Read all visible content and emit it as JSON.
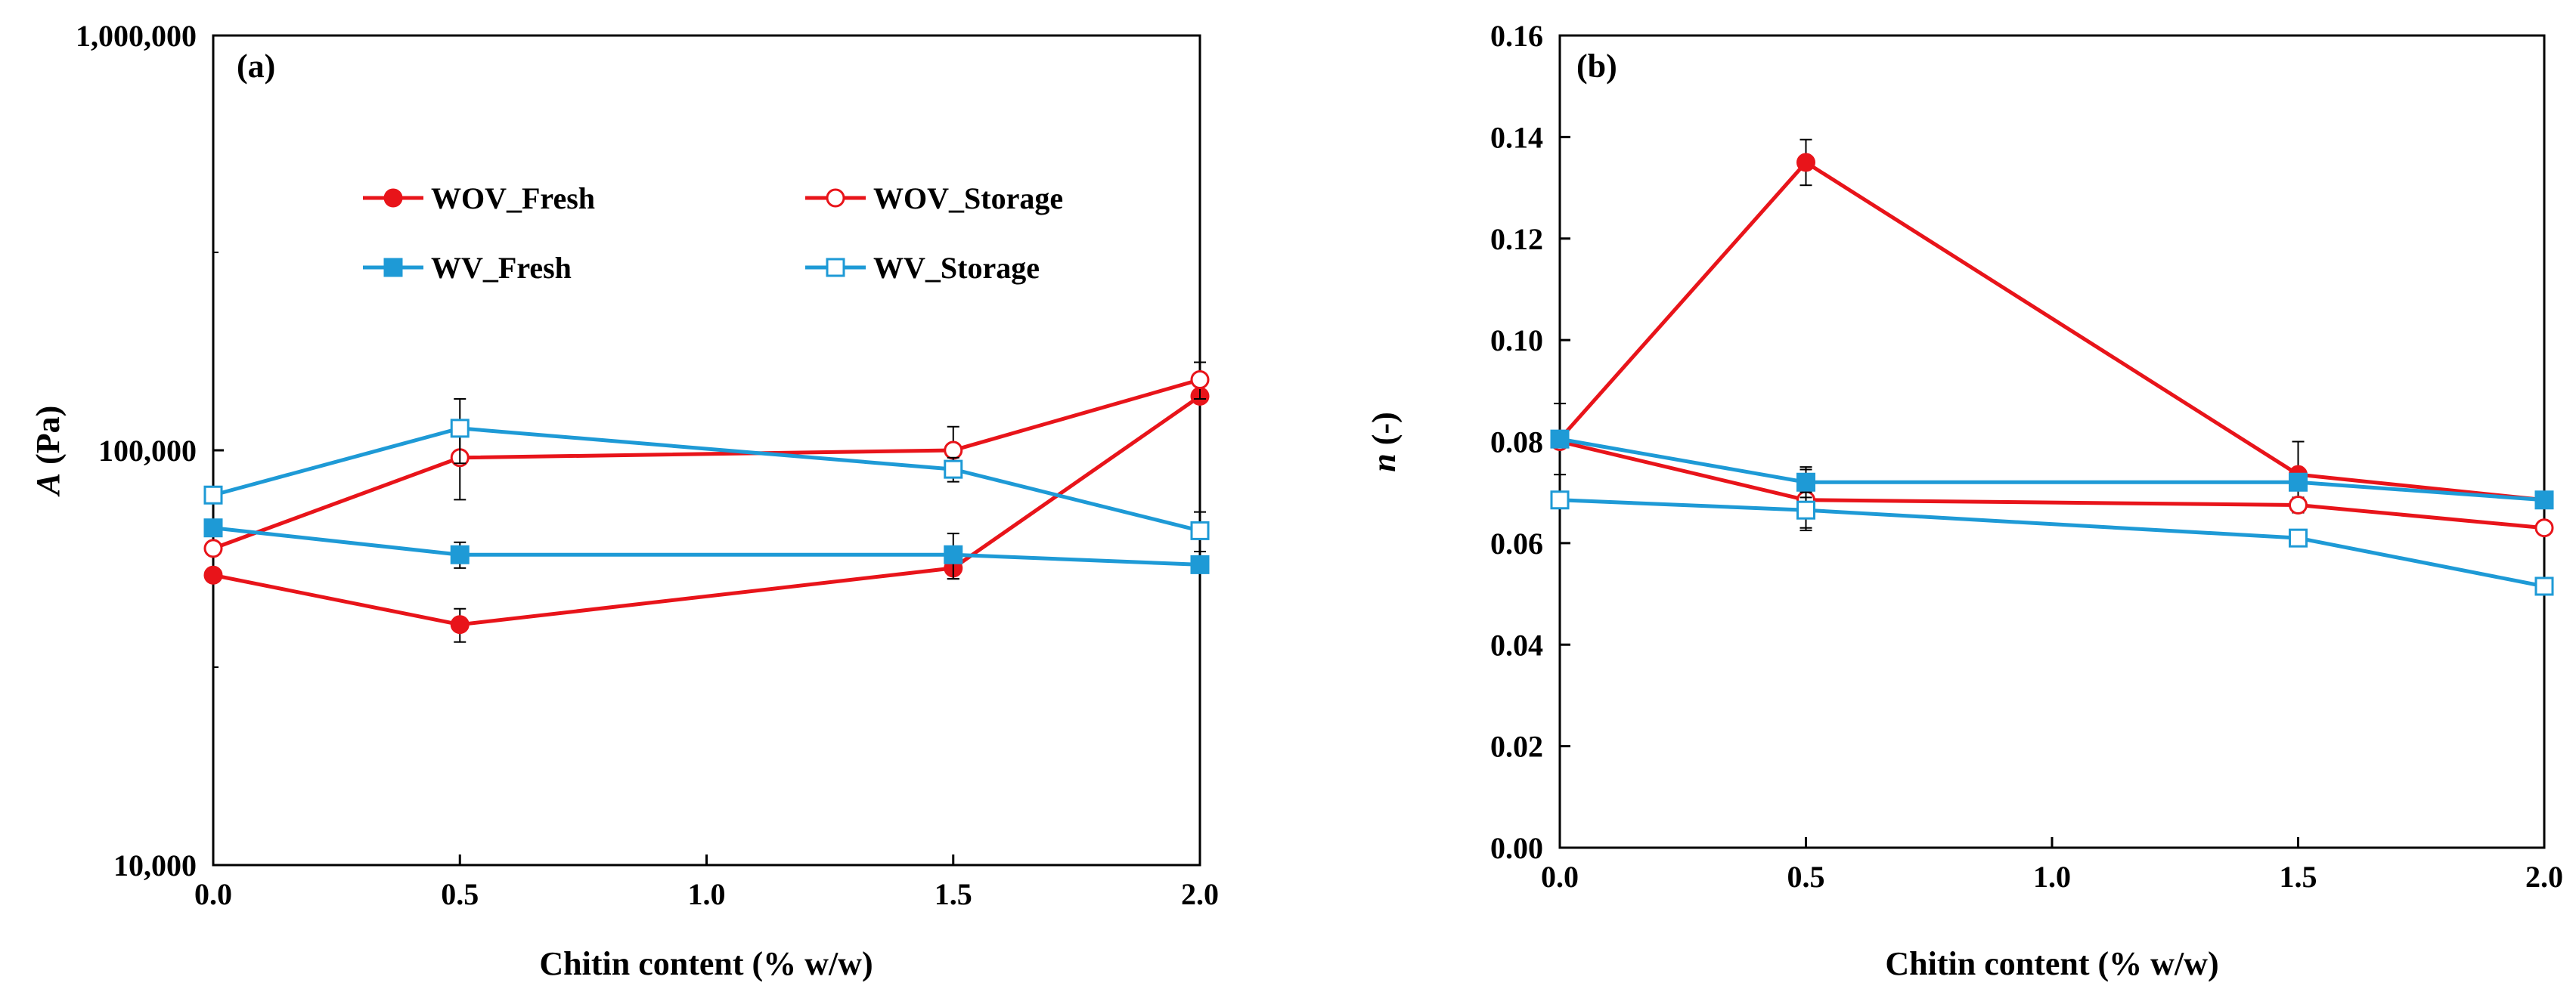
{
  "chart_data": [
    {
      "type": "line",
      "panel_label": "(a)",
      "xlabel": "Chitin content (% w/w)",
      "ylabel_var": "A",
      "ylabel_unit": " (Pa)",
      "xlim": [
        0,
        2
      ],
      "x_ticks": [
        0,
        0.5,
        1,
        1.5,
        2
      ],
      "x_tick_labels": [
        "0.0",
        "0.5",
        "1.0",
        "1.5",
        "2.0"
      ],
      "yscale": "log",
      "ylim": [
        10000,
        1000000
      ],
      "y_ticks": [
        10000,
        100000,
        1000000
      ],
      "y_tick_labels": [
        "10,000",
        "100,000",
        "1,000,000"
      ],
      "y_minor_ticks": [
        30000,
        300000
      ],
      "legend_placement": "top-center",
      "series": [
        {
          "name": "WOV_Fresh",
          "color": "#E8141A",
          "marker": "circle",
          "filled": true,
          "x": [
            0,
            0.5,
            1.5,
            2
          ],
          "values": [
            50000,
            38000,
            52000,
            135000
          ],
          "errors": [
            0,
            3500,
            3000,
            0
          ]
        },
        {
          "name": "WOV_Storage",
          "color": "#E8141A",
          "marker": "circle",
          "filled": false,
          "x": [
            0,
            0.5,
            1.5,
            2
          ],
          "values": [
            58000,
            96000,
            100000,
            148000
          ],
          "errors": [
            0,
            20000,
            14000,
            15000
          ]
        },
        {
          "name": "WV_Fresh",
          "color": "#1E9AD6",
          "marker": "square",
          "filled": true,
          "x": [
            0,
            0.5,
            1.5,
            2
          ],
          "values": [
            65000,
            56000,
            56000,
            53000
          ],
          "errors": [
            0,
            4000,
            7000,
            0
          ]
        },
        {
          "name": "WV_Storage",
          "color": "#1E9AD6",
          "marker": "square",
          "filled": false,
          "x": [
            0,
            0.5,
            1.5,
            2
          ],
          "values": [
            78000,
            113000,
            90000,
            64000
          ],
          "errors": [
            0,
            20000,
            6000,
            7000
          ]
        }
      ]
    },
    {
      "type": "line",
      "panel_label": "(b)",
      "xlabel": "Chitin content (% w/w)",
      "ylabel_var": "n",
      "ylabel_unit": " (-)",
      "xlim": [
        0,
        2
      ],
      "x_ticks": [
        0,
        0.5,
        1,
        1.5,
        2
      ],
      "x_tick_labels": [
        "0.0",
        "0.5",
        "1.0",
        "1.5",
        "2.0"
      ],
      "yscale": "linear",
      "ylim": [
        0,
        0.16
      ],
      "y_ticks": [
        0,
        0.02,
        0.04,
        0.06,
        0.08,
        0.1,
        0.12,
        0.14,
        0.16
      ],
      "y_tick_labels": [
        "0.00",
        "0.02",
        "0.04",
        "0.06",
        "0.08",
        "0.10",
        "0.12",
        "0.14",
        "0.16"
      ],
      "series": [
        {
          "name": "WOV_Fresh",
          "color": "#E8141A",
          "marker": "circle",
          "filled": true,
          "x": [
            0,
            0.5,
            1.5,
            2
          ],
          "values": [
            0.0805,
            0.135,
            0.0735,
            0.0685
          ],
          "errors": [
            0.007,
            0.0045,
            0.0065,
            0
          ]
        },
        {
          "name": "WOV_Storage",
          "color": "#E8141A",
          "marker": "circle",
          "filled": false,
          "x": [
            0,
            0.5,
            1.5,
            2
          ],
          "values": [
            0.08,
            0.0685,
            0.0675,
            0.063
          ],
          "errors": [
            0,
            0.006,
            0.0015,
            0
          ]
        },
        {
          "name": "WV_Fresh",
          "color": "#1E9AD6",
          "marker": "square",
          "filled": true,
          "x": [
            0,
            0.5,
            1.5,
            2
          ],
          "values": [
            0.0805,
            0.072,
            0.072,
            0.0685
          ],
          "errors": [
            0,
            0.003,
            0.0015,
            0
          ]
        },
        {
          "name": "WV_Storage",
          "color": "#1E9AD6",
          "marker": "square",
          "filled": false,
          "x": [
            0,
            0.5,
            1.5,
            2
          ],
          "values": [
            0.0685,
            0.0665,
            0.061,
            0.0515
          ],
          "errors": [
            0,
            0.0035,
            0.001,
            0.001
          ]
        }
      ]
    }
  ]
}
